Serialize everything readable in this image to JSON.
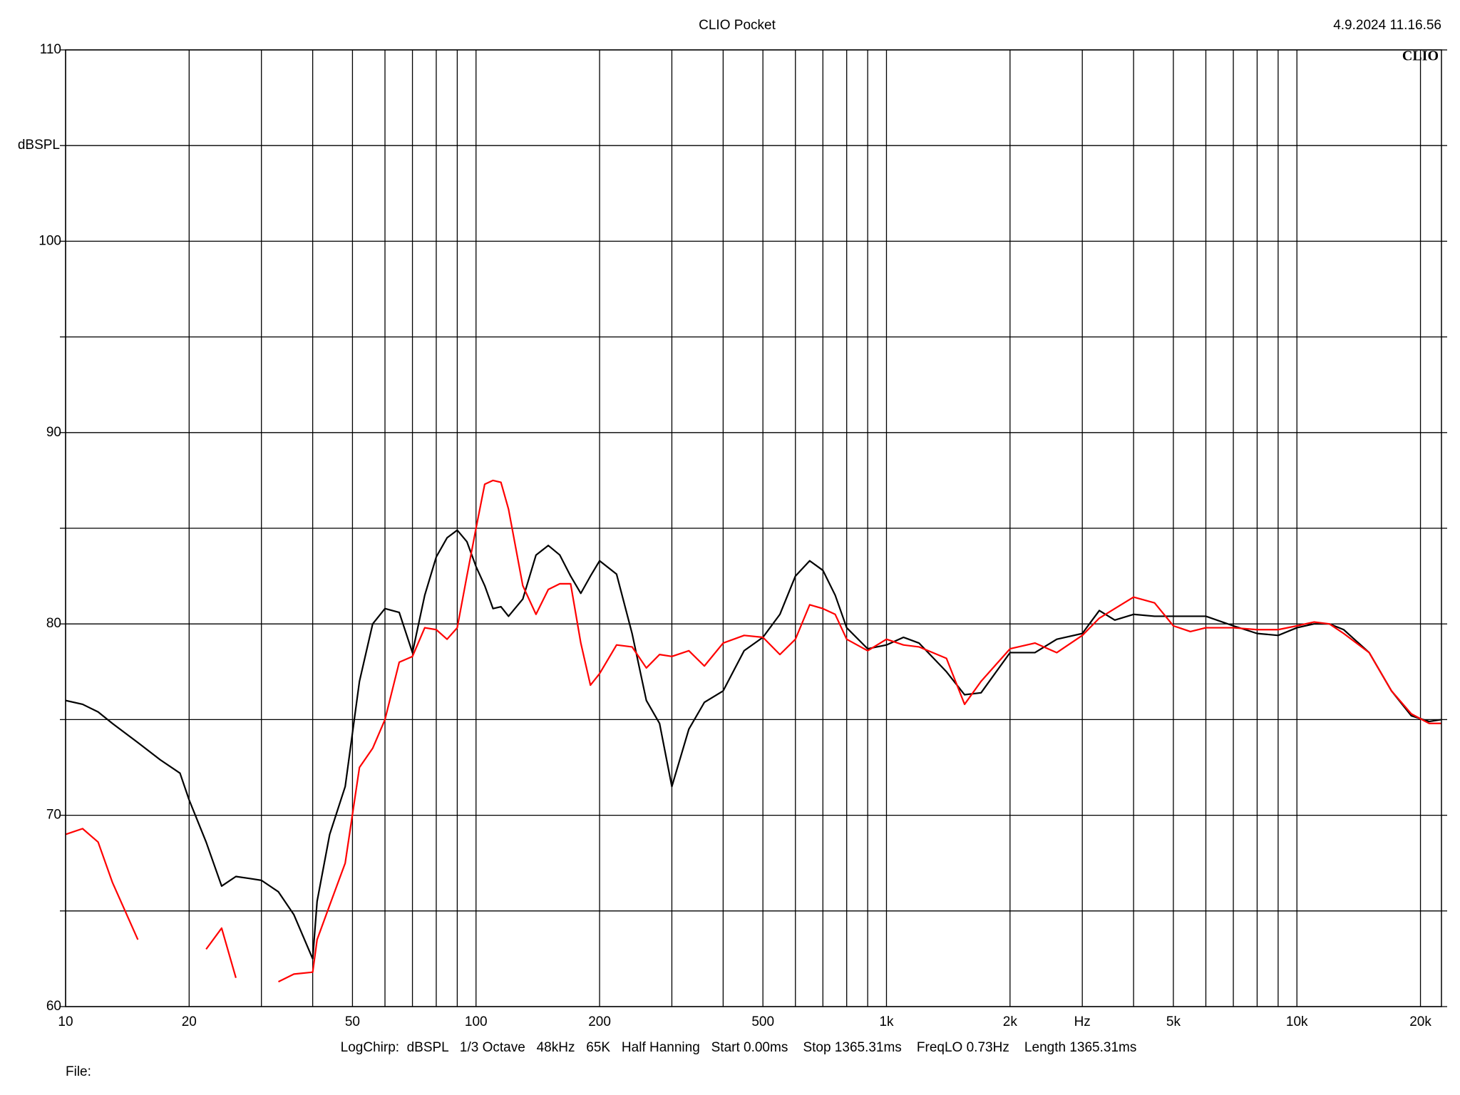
{
  "chart_data": {
    "type": "line",
    "title": "CLIO Pocket",
    "timestamp": "4.9.2024 11.16.56",
    "logo": "CLIO",
    "y_label": "dBSPL",
    "x_label": "Hz",
    "footer": "LogChirp:  dBSPL   1/3 Octave   48kHz   65K   Half Hanning   Start 0.00ms    Stop 1365.31ms    FreqLO 0.73Hz    Length 1365.31ms",
    "file_label": "File:",
    "xscale": "log",
    "grid": true,
    "xlim": [
      10,
      22500
    ],
    "ylim": [
      60,
      110
    ],
    "xticks": [
      10,
      20,
      50,
      100,
      200,
      500,
      {
        "value": 1000,
        "label": "1k"
      },
      {
        "value": 2000,
        "label": "2k"
      },
      {
        "value": 5000,
        "label": "5k"
      },
      {
        "value": 10000,
        "label": "10k"
      },
      {
        "value": 20000,
        "label": "20k"
      }
    ],
    "xminorticks": [
      30,
      40,
      60,
      70,
      80,
      90,
      300,
      400,
      600,
      700,
      800,
      900,
      3000,
      4000,
      6000,
      7000,
      8000,
      9000
    ],
    "yticks": [
      60,
      70,
      80,
      90,
      100,
      110
    ],
    "yminorticks": [
      65,
      75,
      85,
      95,
      105
    ],
    "x": [
      10,
      11,
      12,
      13,
      15,
      17,
      19,
      20,
      22,
      24,
      26,
      28,
      30,
      33,
      36,
      40,
      41,
      44,
      48,
      52,
      56,
      60,
      65,
      70,
      75,
      80,
      85,
      90,
      95,
      100,
      105,
      110,
      115,
      120,
      130,
      140,
      150,
      160,
      170,
      180,
      190,
      200,
      220,
      240,
      260,
      280,
      300,
      330,
      360,
      400,
      450,
      500,
      550,
      600,
      650,
      700,
      750,
      800,
      900,
      1000,
      1100,
      1200,
      1400,
      1550,
      1700,
      2000,
      2300,
      2600,
      3000,
      3300,
      3600,
      4000,
      4500,
      5000,
      5500,
      6000,
      7000,
      8000,
      9000,
      10000,
      11000,
      12000,
      13000,
      15000,
      17000,
      19000,
      21000,
      22500
    ],
    "series": [
      {
        "color": "#000000",
        "values": [
          76.0,
          75.8,
          75.4,
          74.8,
          73.8,
          72.9,
          72.2,
          70.8,
          68.6,
          66.3,
          66.8,
          66.7,
          66.6,
          66.0,
          64.8,
          62.5,
          65.5,
          69.0,
          71.5,
          77.0,
          80.0,
          80.8,
          80.6,
          78.5,
          81.5,
          83.5,
          84.5,
          84.9,
          84.3,
          83.0,
          82.0,
          80.8,
          80.9,
          80.4,
          81.3,
          83.6,
          84.1,
          83.6,
          82.5,
          81.6,
          82.5,
          83.3,
          82.6,
          79.5,
          76.0,
          74.8,
          71.5,
          74.5,
          75.9,
          76.5,
          78.6,
          79.3,
          80.5,
          82.5,
          83.3,
          82.8,
          81.5,
          79.8,
          78.7,
          78.9,
          79.3,
          79.0,
          77.5,
          76.3,
          76.4,
          78.5,
          78.5,
          79.2,
          79.5,
          80.7,
          80.2,
          80.5,
          80.4,
          80.4,
          80.4,
          80.4,
          79.9,
          79.5,
          79.4,
          79.8,
          80.0,
          80.0,
          79.7,
          78.5,
          76.5,
          75.2,
          74.9,
          75.0
        ]
      },
      {
        "color": "#ff0000",
        "values": [
          69.0,
          69.3,
          68.6,
          66.5,
          63.5,
          null,
          null,
          null,
          63.0,
          64.1,
          61.5,
          null,
          null,
          61.3,
          61.7,
          61.8,
          63.5,
          65.3,
          67.5,
          72.5,
          73.5,
          75.0,
          78.0,
          78.3,
          79.8,
          79.7,
          79.2,
          79.8,
          82.5,
          85.0,
          87.3,
          87.5,
          87.4,
          86.0,
          82.0,
          80.5,
          81.8,
          82.1,
          82.1,
          79.0,
          76.8,
          77.4,
          78.9,
          78.8,
          77.7,
          78.4,
          78.3,
          78.6,
          77.8,
          79.0,
          79.4,
          79.3,
          78.4,
          79.2,
          81.0,
          80.8,
          80.5,
          79.2,
          78.6,
          79.2,
          78.9,
          78.8,
          78.2,
          75.8,
          77.0,
          78.7,
          79.0,
          78.5,
          79.4,
          80.3,
          80.8,
          81.4,
          81.1,
          79.9,
          79.6,
          79.8,
          79.8,
          79.7,
          79.7,
          79.9,
          80.1,
          80.0,
          79.5,
          78.5,
          76.5,
          75.3,
          74.8,
          74.8
        ]
      }
    ]
  }
}
